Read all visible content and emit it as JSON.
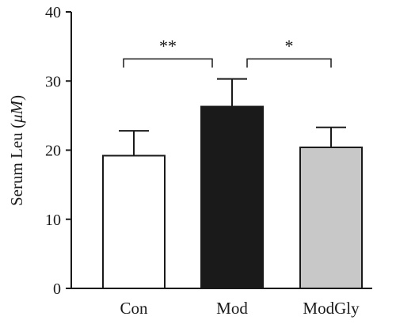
{
  "chart_data": {
    "type": "bar",
    "title": "",
    "xlabel": "",
    "ylabel_main": "Serum Leu (",
    "ylabel_unit": "μM",
    "ylabel_close": ")",
    "categories": [
      "Con",
      "Mod",
      "ModGly"
    ],
    "values": [
      19.2,
      26.3,
      20.4
    ],
    "errors": [
      3.6,
      4.0,
      2.9
    ],
    "bar_fill": [
      "#ffffff",
      "#1a1a1a",
      "#c8c8c8"
    ],
    "bar_stroke": "#1a1a1a",
    "ylim": [
      0,
      40
    ],
    "yticks": [
      0,
      10,
      20,
      30,
      40
    ],
    "grid": false,
    "annotations": [
      {
        "from": 0,
        "to": 1,
        "y": 33.2,
        "label": "**"
      },
      {
        "from": 1,
        "to": 2,
        "y": 33.2,
        "label": "*"
      }
    ]
  }
}
